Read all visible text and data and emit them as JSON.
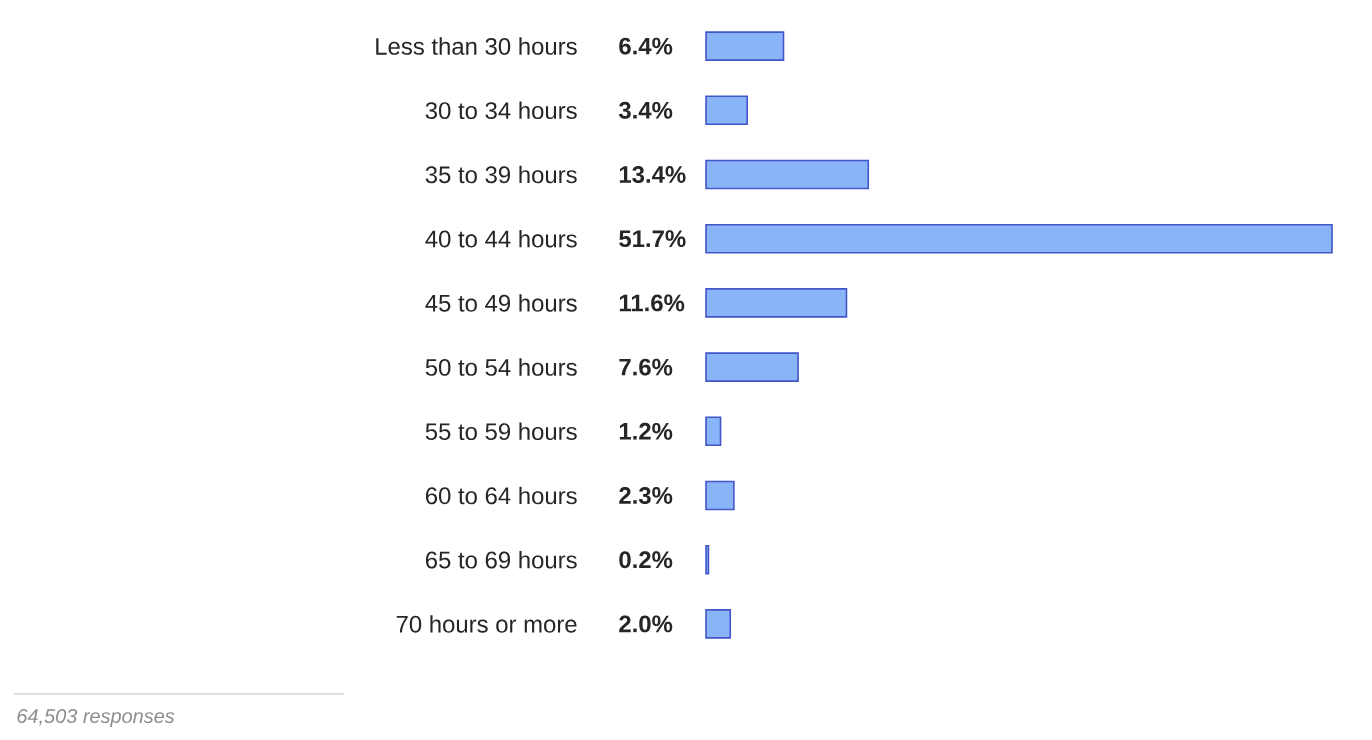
{
  "chart_data": {
    "type": "bar",
    "orientation": "horizontal",
    "categories": [
      "Less than 30 hours",
      "30 to 34 hours",
      "35 to 39 hours",
      "40 to 44 hours",
      "45 to 49 hours",
      "50 to 54 hours",
      "55 to 59 hours",
      "60 to 64 hours",
      "65 to 69 hours",
      "70 hours or more"
    ],
    "values": [
      6.4,
      3.4,
      13.4,
      51.7,
      11.6,
      7.6,
      1.2,
      2.3,
      0.2,
      2.0
    ],
    "value_labels": [
      "6.4%",
      "3.4%",
      "13.4%",
      "51.7%",
      "11.6%",
      "7.6%",
      "1.2%",
      "2.3%",
      "0.2%",
      "2.0%"
    ],
    "color": "#8ab4f8",
    "annotations": [
      "64,503 responses"
    ]
  }
}
